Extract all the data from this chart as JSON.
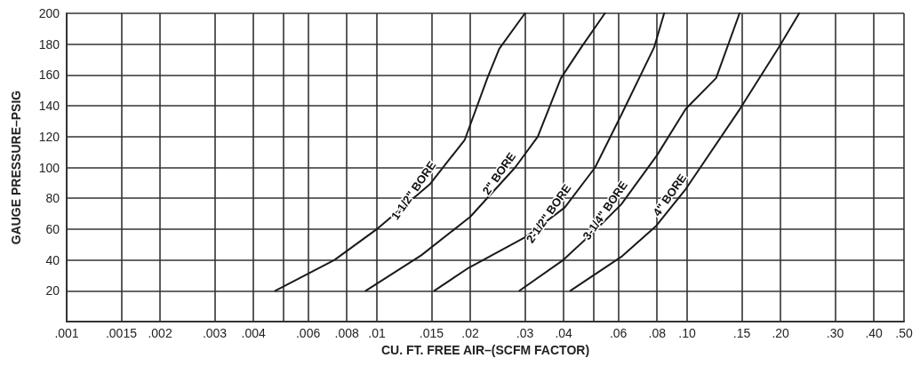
{
  "chart_data": {
    "type": "line",
    "xlabel": "CU. FT. FREE AIR–(SCFM FACTOR)",
    "ylabel": "GAUGE PRESSURE–PSIG",
    "log": "x",
    "xlim": [
      0.001,
      0.5
    ],
    "xticks": [
      {
        "value": 0.001,
        "label": ".001"
      },
      {
        "value": 0.0015,
        "label": ".0015"
      },
      {
        "value": 0.002,
        "label": ".002"
      },
      {
        "value": 0.003,
        "label": ".003"
      },
      {
        "value": 0.004,
        "label": ".004"
      },
      {
        "value": 0.005,
        "label": null
      },
      {
        "value": 0.006,
        "label": ".006"
      },
      {
        "value": 0.008,
        "label": ".008"
      },
      {
        "value": 0.01,
        "label": ".01"
      },
      {
        "value": 0.015,
        "label": ".015"
      },
      {
        "value": 0.02,
        "label": ".02"
      },
      {
        "value": 0.03,
        "label": ".03"
      },
      {
        "value": 0.04,
        "label": ".04"
      },
      {
        "value": 0.05,
        "label": null
      },
      {
        "value": 0.06,
        "label": ".06"
      },
      {
        "value": 0.08,
        "label": ".08"
      },
      {
        "value": 0.1,
        "label": ".10"
      },
      {
        "value": 0.15,
        "label": ".15"
      },
      {
        "value": 0.2,
        "label": ".20"
      },
      {
        "value": 0.3,
        "label": ".30"
      },
      {
        "value": 0.4,
        "label": ".40"
      },
      {
        "value": 0.5,
        "label": ".50"
      }
    ],
    "ylim": [
      0,
      200
    ],
    "yticks": [
      {
        "value": 0,
        "label": null
      },
      20,
      40,
      60,
      80,
      100,
      120,
      140,
      160,
      180,
      200
    ],
    "grid": true,
    "legend": false,
    "marker": "none",
    "line_style": "solid",
    "series": [
      {
        "name": "1-1/2\" BORE",
        "color": "#1a1a1a",
        "x": [
          0.0047,
          0.0073,
          0.01,
          0.0148,
          0.0192,
          0.0227,
          0.0248,
          0.03
        ],
        "values": [
          20,
          40,
          60,
          89,
          118,
          158,
          177,
          200
        ]
      },
      {
        "name": "2\" BORE",
        "color": "#1a1a1a",
        "x": [
          0.0092,
          0.0139,
          0.02,
          0.0279,
          0.033,
          0.0392,
          0.0456,
          0.0543
        ],
        "values": [
          20,
          43,
          68,
          100,
          120,
          158,
          178,
          200
        ]
      },
      {
        "name": "2-1/2\" BORE",
        "color": "#1a1a1a",
        "x": [
          0.0153,
          0.0198,
          0.0302,
          0.0403,
          0.0505,
          0.0613,
          0.0783,
          0.0843
        ],
        "values": [
          20,
          35,
          55,
          74,
          100,
          134,
          178,
          200
        ]
      },
      {
        "name": "3-1/4\" BORE",
        "color": "#1a1a1a",
        "x": [
          0.0288,
          0.0399,
          0.0504,
          0.0613,
          0.08,
          0.099,
          0.124,
          0.1475
        ],
        "values": [
          20,
          40,
          59,
          76,
          108,
          138,
          158,
          200
        ]
      },
      {
        "name": "4\" BORE",
        "color": "#1a1a1a",
        "x": [
          0.042,
          0.0613,
          0.0794,
          0.099,
          0.148,
          0.1975,
          0.2296
        ],
        "values": [
          20,
          42,
          62,
          86,
          138,
          178,
          200
        ]
      }
    ]
  }
}
